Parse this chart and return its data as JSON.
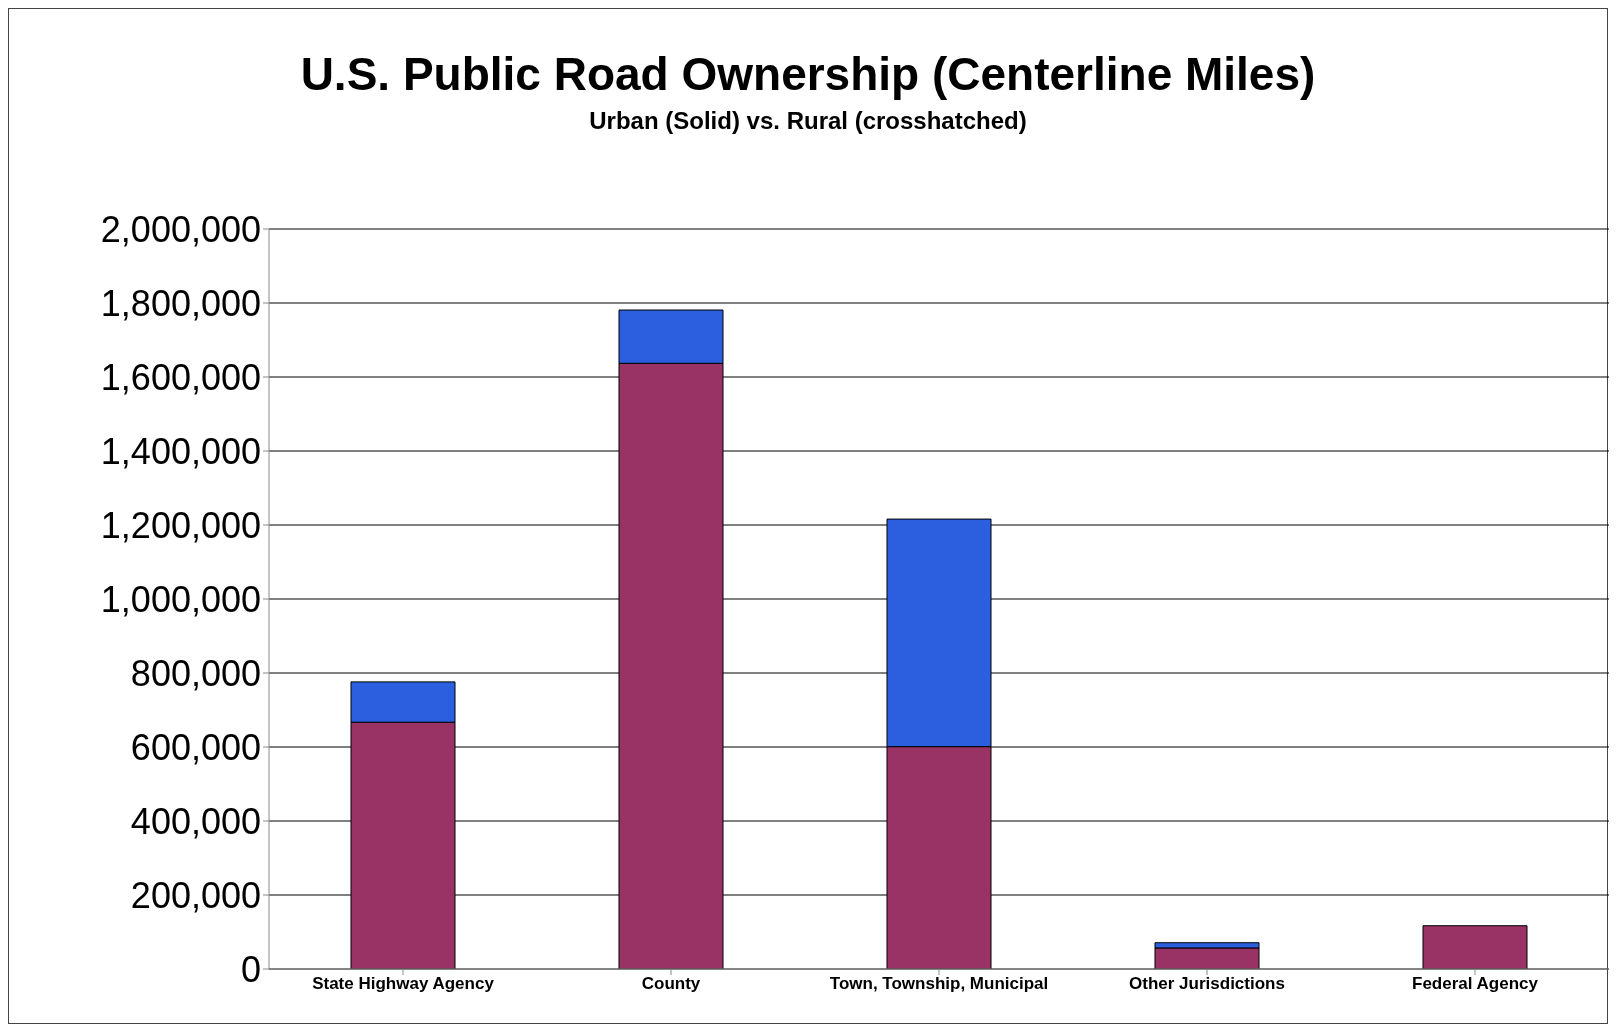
{
  "chart_data": {
    "type": "bar",
    "title": "U.S. Public Road Ownership (Centerline Miles)",
    "subtitle": "Urban (Solid)  vs. Rural (crosshatched)",
    "categories": [
      "State Highway Agency",
      "County",
      "Town, Township, Municipal",
      "Other Jurisdictions",
      "Federal Agency"
    ],
    "stacked": true,
    "series": [
      {
        "color": "#993366",
        "values": [
          667000,
          1637000,
          601000,
          57000,
          117000
        ]
      },
      {
        "color": "#2b5fe0",
        "values": [
          109000,
          144000,
          615000,
          14000,
          0
        ]
      }
    ],
    "ylim": [
      0,
      2000000
    ],
    "yticks": [
      0,
      {
        "value": 200000,
        "label": "200,000"
      },
      {
        "value": 400000,
        "label": "400,000"
      },
      {
        "value": 600000,
        "label": "600,000"
      },
      {
        "value": 800000,
        "label": "800,000"
      },
      {
        "value": 1000000,
        "label": "1,000,000"
      },
      {
        "value": 1200000,
        "label": "1,200,000"
      },
      {
        "value": 1400000,
        "label": "1,400,000"
      },
      {
        "value": 1600000,
        "label": "1,600,000"
      },
      {
        "value": 1800000,
        "label": "1,800,000"
      },
      {
        "value": 2000000,
        "label": "2,000,000"
      }
    ],
    "grid": "y",
    "legend": false
  }
}
